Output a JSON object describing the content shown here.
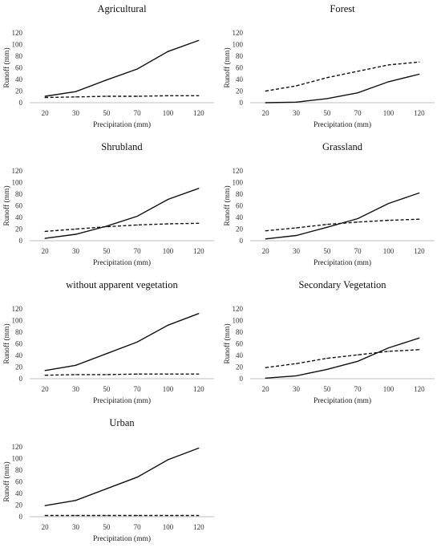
{
  "chart_data": [
    {
      "type": "line",
      "title": "Agricultural",
      "xlabel": "Precipitation (mm)",
      "ylabel": "Runoff (mm)",
      "categories": [
        "20",
        "30",
        "50",
        "70",
        "100",
        "120"
      ],
      "ylim": [
        0,
        120
      ],
      "yticks": [
        "0",
        "20",
        "40",
        "60",
        "80",
        "100",
        "120"
      ],
      "grid": false,
      "series": [
        {
          "style": "solid",
          "values": [
            11,
            19,
            39,
            58,
            88,
            107
          ]
        },
        {
          "style": "dashed",
          "values": [
            9,
            10,
            11,
            11,
            12,
            12
          ]
        }
      ]
    },
    {
      "type": "line",
      "title": "Forest",
      "xlabel": "Precipitation (mm)",
      "ylabel": "Runoff (mm)",
      "categories": [
        "20",
        "30",
        "50",
        "70",
        "100",
        "120"
      ],
      "ylim": [
        0,
        120
      ],
      "yticks": [
        "0",
        "20",
        "40",
        "60",
        "80",
        "100",
        "120"
      ],
      "grid": false,
      "series": [
        {
          "style": "solid",
          "values": [
            0,
            1,
            7,
            17,
            36,
            49
          ]
        },
        {
          "style": "dashed",
          "values": [
            20,
            29,
            43,
            54,
            65,
            70
          ]
        }
      ]
    },
    {
      "type": "line",
      "title": "Shrubland",
      "xlabel": "Precipitation (mm)",
      "ylabel": "Runoff (mm)",
      "categories": [
        "20",
        "30",
        "50",
        "70",
        "100",
        "120"
      ],
      "ylim": [
        0,
        120
      ],
      "yticks": [
        "0",
        "20",
        "40",
        "60",
        "80",
        "100",
        "120"
      ],
      "grid": false,
      "series": [
        {
          "style": "solid",
          "values": [
            4,
            11,
            25,
            42,
            71,
            90
          ]
        },
        {
          "style": "dashed",
          "values": [
            16,
            20,
            24,
            27,
            29,
            30
          ]
        }
      ]
    },
    {
      "type": "line",
      "title": "Grassland",
      "xlabel": "Precipitation (mm)",
      "ylabel": "Runoff (mm)",
      "categories": [
        "20",
        "30",
        "50",
        "70",
        "100",
        "120"
      ],
      "ylim": [
        0,
        120
      ],
      "yticks": [
        "0",
        "20",
        "40",
        "60",
        "80",
        "100",
        "120"
      ],
      "grid": false,
      "series": [
        {
          "style": "solid",
          "values": [
            3,
            9,
            23,
            38,
            64,
            82
          ]
        },
        {
          "style": "dashed",
          "values": [
            17,
            22,
            28,
            32,
            35,
            37
          ]
        }
      ]
    },
    {
      "type": "line",
      "title": "without apparent vegetation",
      "xlabel": "Precipitation (mm)",
      "ylabel": "Runoff (mm)",
      "categories": [
        "20",
        "30",
        "50",
        "70",
        "100",
        "120"
      ],
      "ylim": [
        0,
        120
      ],
      "yticks": [
        "0",
        "20",
        "40",
        "60",
        "80",
        "100",
        "120"
      ],
      "grid": false,
      "series": [
        {
          "style": "solid",
          "values": [
            14,
            23,
            43,
            63,
            92,
            112
          ]
        },
        {
          "style": "dashed",
          "values": [
            6,
            7,
            7,
            8,
            8,
            8
          ]
        }
      ]
    },
    {
      "type": "line",
      "title": "Secondary Vegetation",
      "xlabel": "Precipitation (mm)",
      "ylabel": "Runoff (mm)",
      "categories": [
        "20",
        "30",
        "50",
        "70",
        "100",
        "120"
      ],
      "ylim": [
        0,
        120
      ],
      "yticks": [
        "0",
        "20",
        "40",
        "60",
        "80",
        "100",
        "120"
      ],
      "grid": false,
      "series": [
        {
          "style": "solid",
          "values": [
            1,
            5,
            16,
            30,
            53,
            70
          ]
        },
        {
          "style": "dashed",
          "values": [
            19,
            26,
            35,
            41,
            47,
            50
          ]
        }
      ]
    },
    {
      "type": "line",
      "title": "Urban",
      "xlabel": "Precipitation (mm)",
      "ylabel": "Runoff (mm)",
      "categories": [
        "20",
        "30",
        "50",
        "70",
        "100",
        "120"
      ],
      "ylim": [
        0,
        120
      ],
      "yticks": [
        "0",
        "20",
        "40",
        "60",
        "80",
        "100",
        "120"
      ],
      "grid": false,
      "series": [
        {
          "style": "solid",
          "values": [
            19,
            28,
            48,
            68,
            98,
            118
          ]
        },
        {
          "style": "dashed",
          "values": [
            2,
            2,
            2,
            2,
            2,
            2
          ]
        }
      ]
    }
  ]
}
